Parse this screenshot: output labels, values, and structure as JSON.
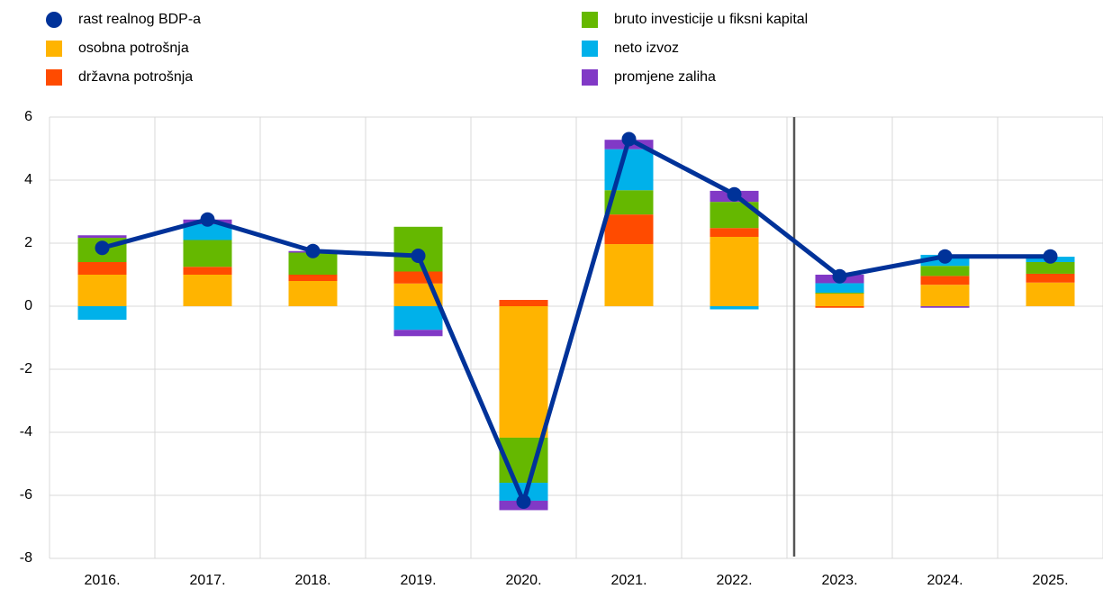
{
  "chart_data": {
    "type": "bar",
    "stacked": true,
    "categories": [
      "2016.",
      "2017.",
      "2018.",
      "2019.",
      "2020.",
      "2021.",
      "2022.",
      "2023.",
      "2024.",
      "2025."
    ],
    "ylim": [
      -8,
      6
    ],
    "yticks": [
      -8,
      -6,
      -4,
      -2,
      0,
      2,
      4,
      6
    ],
    "grid": true,
    "series": [
      {
        "name": "rast realnog BDP-a",
        "type": "line",
        "color": "#003299",
        "values": [
          1.85,
          2.75,
          1.75,
          1.6,
          -6.2,
          5.3,
          3.55,
          0.95,
          1.58,
          1.58
        ]
      },
      {
        "name": "osobna potrošnja",
        "color": "#ffb400",
        "values": [
          1.0,
          1.0,
          0.8,
          0.72,
          -4.17,
          1.97,
          2.2,
          0.4,
          0.68,
          0.75
        ]
      },
      {
        "name": "državna potrošnja",
        "color": "#ff4b00",
        "values": [
          0.4,
          0.25,
          0.2,
          0.38,
          0.2,
          0.94,
          0.28,
          -0.05,
          0.28,
          0.28
        ]
      },
      {
        "name": "bruto investicije u fiksni kapital",
        "color": "#65b800",
        "values": [
          0.77,
          0.85,
          0.7,
          1.42,
          -1.43,
          0.77,
          0.83,
          0.03,
          0.32,
          0.37
        ]
      },
      {
        "name": "neto izvoz",
        "color": "#00b1ea",
        "values": [
          -0.43,
          0.5,
          0.0,
          -0.75,
          -0.57,
          1.3,
          -0.1,
          0.3,
          0.35,
          0.17
        ]
      },
      {
        "name": "promjene zaliha",
        "color": "#8139c6",
        "values": [
          0.08,
          0.15,
          0.05,
          -0.2,
          -0.3,
          0.3,
          0.35,
          0.27,
          -0.05,
          0.0
        ]
      }
    ]
  }
}
